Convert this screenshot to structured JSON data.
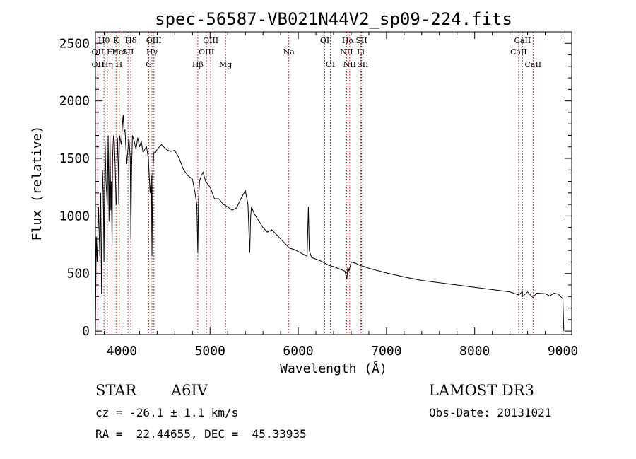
{
  "chart_data": {
    "type": "line",
    "title": "spec-56587-VB021N44V2_sp09-224.fits",
    "xlabel": "Wavelength (Å)",
    "ylabel": "Flux (relative)",
    "xlim": [
      3700,
      9100
    ],
    "ylim": [
      -30,
      2600
    ],
    "xticks": [
      4000,
      5000,
      6000,
      7000,
      8000,
      9000
    ],
    "xtick_labels": [
      "4000",
      "5000",
      "6000",
      "7000",
      "8000",
      "9000"
    ],
    "yticks": [
      0,
      500,
      1000,
      1500,
      2000,
      2500
    ],
    "ytick_labels": [
      "0",
      "500",
      "1000",
      "1500",
      "2000",
      "2500"
    ],
    "series": [
      {
        "name": "spectrum",
        "x": [
          3700,
          3710,
          3720,
          3735,
          3750,
          3760,
          3770,
          3780,
          3790,
          3797,
          3803,
          3810,
          3820,
          3835,
          3845,
          3855,
          3865,
          3875,
          3880,
          3889,
          3895,
          3905,
          3915,
          3925,
          3935,
          3940,
          3950,
          3960,
          3965,
          3970,
          3975,
          3985,
          3995,
          4005,
          4015,
          4025,
          4035,
          4045,
          4055,
          4065,
          4080,
          4095,
          4102,
          4110,
          4120,
          4140,
          4160,
          4180,
          4200,
          4220,
          4240,
          4260,
          4280,
          4300,
          4320,
          4335,
          4341,
          4350,
          4360,
          4380,
          4400,
          4450,
          4500,
          4550,
          4600,
          4650,
          4700,
          4750,
          4800,
          4830,
          4850,
          4861,
          4870,
          4880,
          4900,
          4920,
          4950,
          5000,
          5050,
          5100,
          5150,
          5200,
          5250,
          5300,
          5350,
          5400,
          5430,
          5450,
          5460,
          5470,
          5500,
          5550,
          5600,
          5650,
          5700,
          5750,
          5800,
          5850,
          5900,
          5950,
          6000,
          6050,
          6100,
          6115,
          6125,
          6150,
          6200,
          6250,
          6300,
          6350,
          6400,
          6450,
          6500,
          6530,
          6550,
          6563,
          6575,
          6600,
          6650,
          6700,
          6750,
          6800,
          7000,
          7200,
          7400,
          7600,
          7800,
          8000,
          8200,
          8400,
          8498,
          8540,
          8542,
          8600,
          8662,
          8700,
          8800,
          8850,
          8900,
          8950,
          9000,
          9010
        ],
        "y": [
          0,
          820,
          600,
          1080,
          650,
          1200,
          320,
          1400,
          1200,
          600,
          1150,
          1650,
          1300,
          1100,
          1700,
          950,
          1700,
          1050,
          1300,
          750,
          1500,
          1700,
          1650,
          1400,
          1100,
          1100,
          1680,
          1450,
          1100,
          1550,
          1700,
          1650,
          1620,
          1780,
          1880,
          1730,
          1750,
          1600,
          1450,
          1550,
          1680,
          1500,
          800,
          1400,
          1700,
          1650,
          1580,
          1680,
          1600,
          1650,
          1550,
          1580,
          1600,
          1500,
          1200,
          1350,
          650,
          1350,
          1550,
          1550,
          1580,
          1620,
          1580,
          1560,
          1570,
          1500,
          1400,
          1350,
          1320,
          1200,
          1100,
          680,
          1150,
          1300,
          1350,
          1380,
          1300,
          1250,
          1150,
          1150,
          1100,
          1080,
          1050,
          1070,
          1150,
          1220,
          1100,
          680,
          1000,
          1080,
          1020,
          960,
          900,
          860,
          880,
          840,
          800,
          760,
          720,
          710,
          690,
          670,
          650,
          1080,
          700,
          640,
          625,
          610,
          590,
          570,
          560,
          545,
          530,
          520,
          450,
          560,
          520,
          600,
          590,
          570,
          560,
          545,
          505,
          470,
          440,
          420,
          400,
          380,
          360,
          340,
          315,
          342,
          300,
          340,
          290,
          330,
          325,
          305,
          330,
          320,
          280,
          0
        ]
      }
    ],
    "spectral_lines": [
      {
        "label": "Hθ",
        "wavelength": 3797,
        "row": 1
      },
      {
        "label": "OII",
        "wavelength": 3727,
        "row": 2
      },
      {
        "label": "OII",
        "wavelength": 3727,
        "row": 3
      },
      {
        "label": "K",
        "wavelength": 3934,
        "row": 1
      },
      {
        "label": "Hε",
        "wavelength": 3889,
        "row": 2
      },
      {
        "label": "Hη",
        "wavelength": 3835,
        "row": 3
      },
      {
        "label": "Hδ",
        "wavelength": 4102,
        "row": 1
      },
      {
        "label": "HeI",
        "wavelength": 3970,
        "row": 2
      },
      {
        "label": "H",
        "wavelength": 3968,
        "row": 3
      },
      {
        "label": "SII",
        "wavelength": 4070,
        "row": 2
      },
      {
        "label": "OIII",
        "wavelength": 4363,
        "row": 1
      },
      {
        "label": "Hγ",
        "wavelength": 4341,
        "row": 2
      },
      {
        "label": "G",
        "wavelength": 4305,
        "row": 3
      },
      {
        "label": "OIII",
        "wavelength": 5007,
        "row": 1
      },
      {
        "label": "OIII",
        "wavelength": 4959,
        "row": 2
      },
      {
        "label": "Hβ",
        "wavelength": 4861,
        "row": 3
      },
      {
        "label": "Mg",
        "wavelength": 5175,
        "row": 3
      },
      {
        "label": "Na",
        "wavelength": 5893,
        "row": 2
      },
      {
        "label": "OI",
        "wavelength": 6300,
        "row": 1
      },
      {
        "label": "OI",
        "wavelength": 6364,
        "row": 3
      },
      {
        "label": "Hα",
        "wavelength": 6563,
        "row": 1
      },
      {
        "label": "SII",
        "wavelength": 6717,
        "row": 1
      },
      {
        "label": "NII",
        "wavelength": 6548,
        "row": 2
      },
      {
        "label": "Li",
        "wavelength": 6708,
        "row": 2
      },
      {
        "label": "NII",
        "wavelength": 6583,
        "row": 3
      },
      {
        "label": "SII",
        "wavelength": 6731,
        "row": 3
      },
      {
        "label": "CaII",
        "wavelength": 8542,
        "row": 1
      },
      {
        "label": "CaII",
        "wavelength": 8498,
        "row": 2
      },
      {
        "label": "CaII",
        "wavelength": 8662,
        "row": 3
      }
    ]
  },
  "info": {
    "object_class": "STAR",
    "subclass": "A6IV",
    "survey": "LAMOST DR3",
    "cz": "cz = -26.1 ± 1.1 km/s",
    "obs_date": "Obs-Date: 20131021",
    "coords": "RA =  22.44655, DEC =  45.33935"
  }
}
